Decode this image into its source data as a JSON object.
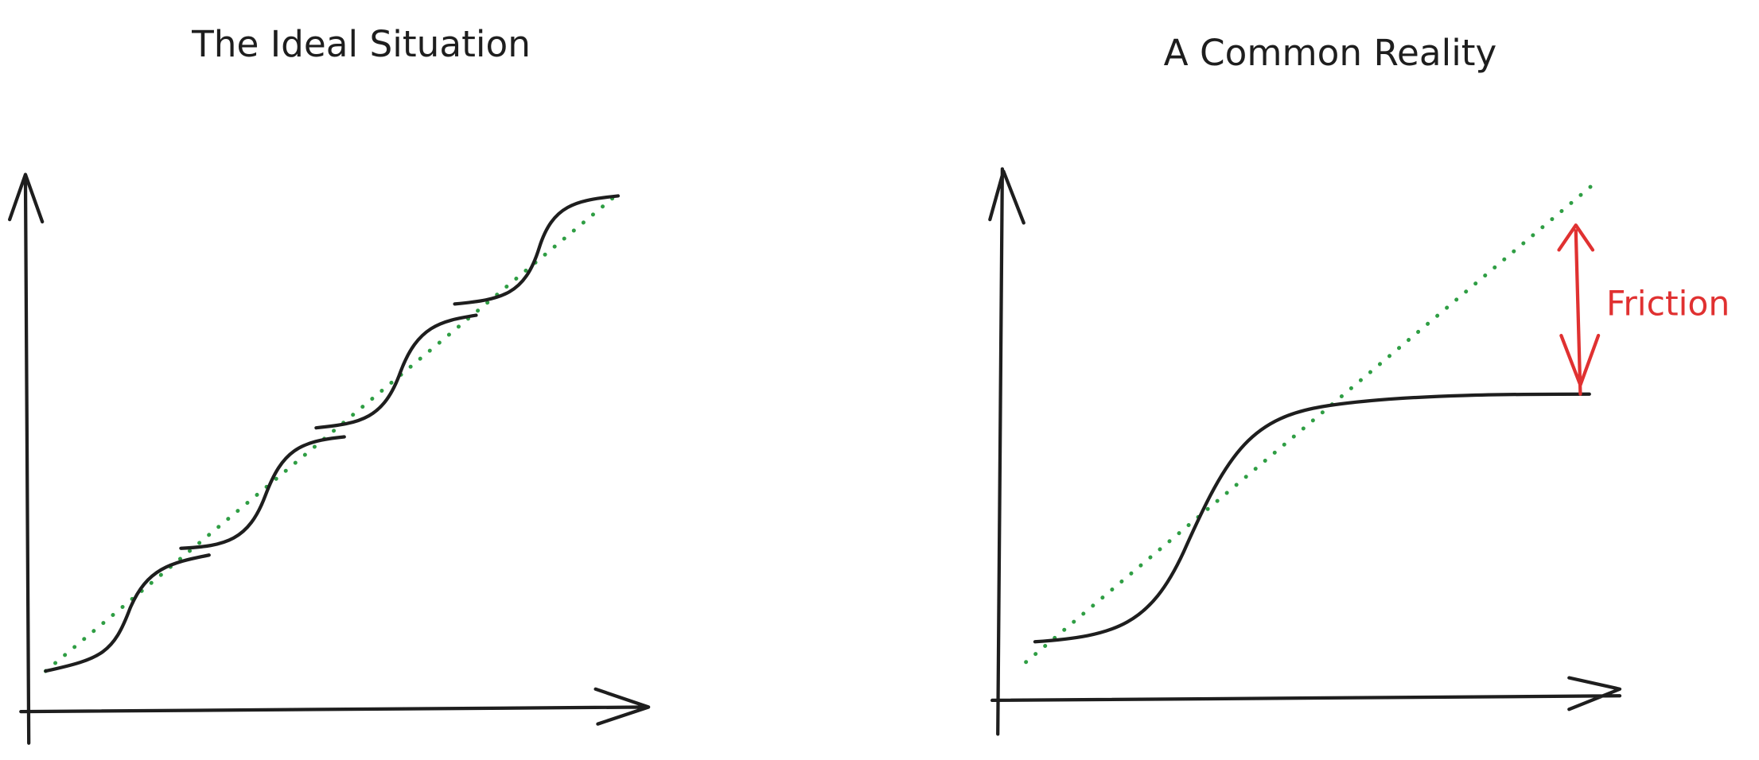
{
  "panels": [
    {
      "title": "The Ideal Situation"
    },
    {
      "title": "A Common Reality",
      "annotation": "Friction"
    }
  ]
}
